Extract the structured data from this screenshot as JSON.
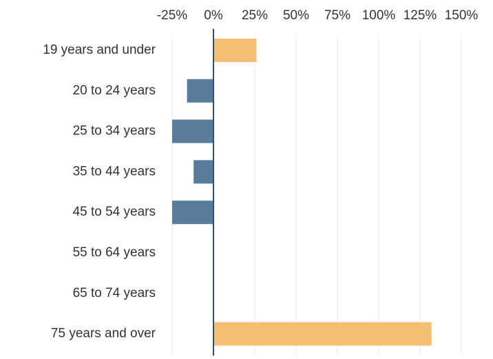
{
  "chart_data": {
    "type": "bar",
    "orientation": "horizontal",
    "title": "",
    "xlabel": "",
    "ylabel": "",
    "categories": [
      "19 years and under",
      "20 to 24  years",
      "25 to 34 years",
      "35 to 44 years",
      "45 to 54 years",
      "55 to 64 years",
      "65 to 74 years",
      "75 years and over"
    ],
    "values": [
      26,
      -16,
      -25,
      -12,
      -25,
      0,
      0,
      132
    ],
    "value_unit": "percent",
    "xlim": [
      -25,
      150
    ],
    "x_ticks": [
      -25,
      0,
      25,
      50,
      75,
      100,
      125,
      150
    ],
    "x_tick_labels": [
      "-25%",
      "0%",
      "25%",
      "50%",
      "75%",
      "100%",
      "125%",
      "150%"
    ],
    "x_axis_position": "top",
    "grid": true,
    "legend": "none",
    "colors": {
      "positive": "#F6BE73",
      "negative": "#587C9A",
      "zero_line": "#2B4F8A",
      "gridline": "#ECECEC",
      "text": "#333333"
    }
  }
}
